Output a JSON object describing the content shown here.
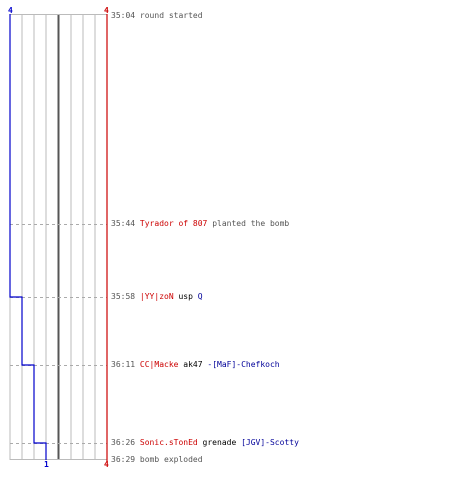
{
  "colors": {
    "team_red": "#cc0000",
    "team_blue": "#0000cc",
    "grid": "#bbbbbb",
    "center_line": "#555555",
    "dashes": "#aaaaaa",
    "text_gray": "#555555"
  },
  "counts": {
    "blue_top": "4",
    "red_top": "4",
    "blue_bottom": "1",
    "red_bottom": "4"
  },
  "events": [
    {
      "time": "35:04",
      "kind": "text",
      "text": "round started"
    },
    {
      "time": "35:44",
      "kind": "plant",
      "player": "Tyrador of 807",
      "text": "planted the bomb"
    },
    {
      "time": "35:58",
      "kind": "kill",
      "killer": "|YY|zoN",
      "weapon": "usp",
      "victim": "Q"
    },
    {
      "time": "36:11",
      "kind": "kill",
      "killer": "CC|Macke",
      "weapon": "ak47",
      "victim": "-[MaF]-Chefkoch"
    },
    {
      "time": "36:26",
      "kind": "kill",
      "killer": "Sonic.sTonEd",
      "weapon": "grenade",
      "victim": "[JGV]-Scotty"
    },
    {
      "time": "36:29",
      "kind": "text",
      "text": "bomb exploded"
    }
  ],
  "team_alive": {
    "blue": [
      4,
      3,
      2,
      1
    ],
    "red": [
      4,
      4,
      4,
      4
    ]
  }
}
